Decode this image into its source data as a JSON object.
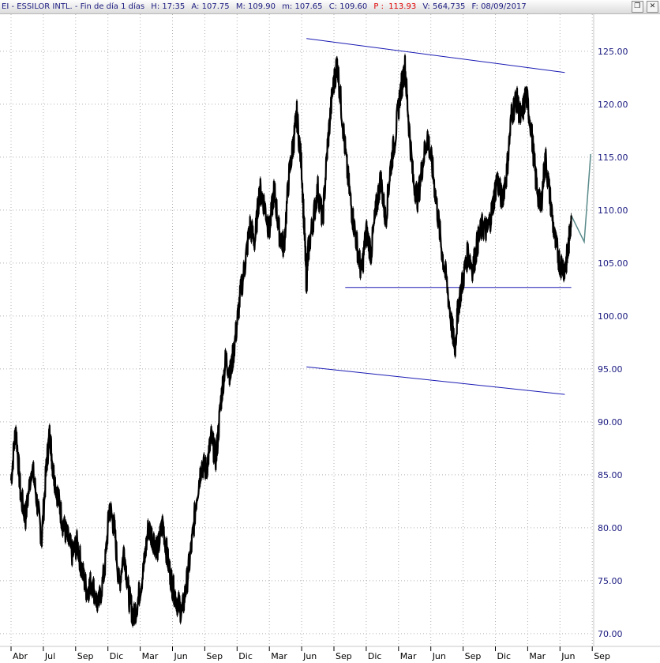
{
  "header": {
    "symbol": "EI - ESSILOR INTL. - Fin de día 1 días",
    "high_label": "H:",
    "high": "17:35",
    "open_label": "A:",
    "open": "107.75",
    "max_label": "M:",
    "max": "109.90",
    "min_label": "m:",
    "min": "107.65",
    "close_label": "C:",
    "close": "109.60",
    "p_label": "P :",
    "p": "113.93",
    "vol_label": "V:",
    "vol": "564,735",
    "date_label": "F:",
    "date": "08/09/2017"
  },
  "window_buttons": {
    "restore_icon": "restore-icon",
    "close_icon": "close-icon"
  },
  "chart_data": {
    "type": "line",
    "title": "EI - ESSILOR INTL.",
    "xlabel": "",
    "ylabel": "",
    "ylim": [
      68.8,
      128.5
    ],
    "y_ticks": [
      70,
      75,
      80,
      85,
      90,
      95,
      100,
      105,
      110,
      115,
      120,
      125
    ],
    "y_tick_labels": [
      "70.00",
      "75.00",
      "80.00",
      "85.00",
      "90.00",
      "95.00",
      "100.00",
      "105.00",
      "110.00",
      "115.00",
      "120.00",
      "125.00"
    ],
    "x_tick_labels": [
      "Abr",
      "Jul",
      "Sep",
      "Dic",
      "Mar",
      "Jun",
      "Sep",
      "Dic",
      "Mar",
      "Jun",
      "Sep",
      "Dic",
      "Mar",
      "Jun",
      "Sep",
      "Dic",
      "Mar",
      "Jun",
      "Sep"
    ],
    "x_tick_index": [
      0,
      1,
      2,
      3,
      4,
      5,
      6,
      7,
      8,
      9,
      10,
      11,
      12,
      13,
      14,
      15,
      16,
      17,
      18
    ],
    "grid": true,
    "series": [
      {
        "values": [
          [
            0,
            84.5
          ],
          [
            0.15,
            89.5
          ],
          [
            0.3,
            83.0
          ],
          [
            0.45,
            81.0
          ],
          [
            0.65,
            86.0
          ],
          [
            0.8,
            82.5
          ],
          [
            0.95,
            79.0
          ],
          [
            1.1,
            86.0
          ],
          [
            1.2,
            89.0
          ],
          [
            1.3,
            85.5
          ],
          [
            1.45,
            83.0
          ],
          [
            1.6,
            80.5
          ],
          [
            1.75,
            79.0
          ],
          [
            1.9,
            77.5
          ],
          [
            2.05,
            78.5
          ],
          [
            2.2,
            76.0
          ],
          [
            2.35,
            74.0
          ],
          [
            2.5,
            75.0
          ],
          [
            2.7,
            72.5
          ],
          [
            2.9,
            76.0
          ],
          [
            3.05,
            82.0
          ],
          [
            3.2,
            80.0
          ],
          [
            3.35,
            74.5
          ],
          [
            3.5,
            78.0
          ],
          [
            3.65,
            73.5
          ],
          [
            3.8,
            71.5
          ],
          [
            3.95,
            73.5
          ],
          [
            4.1,
            76.0
          ],
          [
            4.25,
            80.0
          ],
          [
            4.4,
            79.0
          ],
          [
            4.55,
            78.0
          ],
          [
            4.7,
            80.5
          ],
          [
            4.85,
            77.0
          ],
          [
            5.0,
            74.5
          ],
          [
            5.15,
            73.0
          ],
          [
            5.3,
            72.0
          ],
          [
            5.45,
            75.0
          ],
          [
            5.6,
            78.5
          ],
          [
            5.75,
            83.0
          ],
          [
            5.9,
            86.0
          ],
          [
            6.05,
            85.5
          ],
          [
            6.2,
            88.5
          ],
          [
            6.35,
            86.5
          ],
          [
            6.5,
            92.0
          ],
          [
            6.65,
            96.0
          ],
          [
            6.8,
            94.5
          ],
          [
            6.95,
            98.0
          ],
          [
            7.1,
            102.0
          ],
          [
            7.25,
            105.0
          ],
          [
            7.4,
            108.5
          ],
          [
            7.55,
            107.0
          ],
          [
            7.7,
            112.0
          ],
          [
            7.85,
            110.5
          ],
          [
            8.0,
            108.0
          ],
          [
            8.15,
            112.0
          ],
          [
            8.3,
            108.0
          ],
          [
            8.45,
            106.5
          ],
          [
            8.6,
            113.0
          ],
          [
            8.75,
            116.5
          ],
          [
            8.85,
            119.0
          ],
          [
            9.0,
            114.0
          ],
          [
            9.1,
            107.0
          ],
          [
            9.15,
            103.0
          ],
          [
            9.2,
            106.0
          ],
          [
            9.35,
            109.0
          ],
          [
            9.5,
            112.0
          ],
          [
            9.65,
            109.0
          ],
          [
            9.8,
            116.0
          ],
          [
            9.95,
            121.0
          ],
          [
            10.1,
            124.0
          ],
          [
            10.25,
            119.0
          ],
          [
            10.4,
            114.0
          ],
          [
            10.55,
            110.0
          ],
          [
            10.7,
            107.0
          ],
          [
            10.85,
            104.0
          ],
          [
            11.0,
            108.0
          ],
          [
            11.15,
            106.0
          ],
          [
            11.3,
            110.0
          ],
          [
            11.45,
            113.0
          ],
          [
            11.6,
            109.0
          ],
          [
            11.75,
            114.0
          ],
          [
            11.9,
            117.0
          ],
          [
            12.05,
            121.0
          ],
          [
            12.2,
            123.5
          ],
          [
            12.3,
            119.0
          ],
          [
            12.45,
            113.0
          ],
          [
            12.6,
            111.0
          ],
          [
            12.75,
            114.5
          ],
          [
            12.9,
            117.0
          ],
          [
            13.05,
            114.0
          ],
          [
            13.2,
            110.0
          ],
          [
            13.35,
            106.0
          ],
          [
            13.5,
            103.0
          ],
          [
            13.65,
            99.0
          ],
          [
            13.75,
            97.0
          ],
          [
            13.85,
            101.0
          ],
          [
            14.0,
            103.5
          ],
          [
            14.15,
            106.0
          ],
          [
            14.3,
            104.5
          ],
          [
            14.45,
            107.0
          ],
          [
            14.6,
            108.5
          ],
          [
            14.75,
            108.0
          ],
          [
            14.9,
            110.0
          ],
          [
            15.05,
            113.0
          ],
          [
            15.2,
            111.0
          ],
          [
            15.35,
            113.5
          ],
          [
            15.5,
            119.0
          ],
          [
            15.65,
            120.5
          ],
          [
            15.8,
            118.5
          ],
          [
            15.95,
            121.0
          ],
          [
            16.1,
            118.0
          ],
          [
            16.25,
            113.0
          ],
          [
            16.4,
            110.0
          ],
          [
            16.55,
            115.0
          ],
          [
            16.7,
            111.0
          ],
          [
            16.85,
            107.0
          ],
          [
            17.0,
            105.0
          ],
          [
            17.15,
            104.5
          ],
          [
            17.25,
            106.0
          ],
          [
            17.35,
            109.5
          ]
        ]
      }
    ],
    "annotations": {
      "channel_upper": [
        [
          9.15,
          126.2
        ],
        [
          17.15,
          123.0
        ]
      ],
      "channel_lower": [
        [
          9.15,
          95.2
        ],
        [
          17.15,
          92.6
        ]
      ],
      "support_line": [
        [
          10.35,
          102.7
        ],
        [
          17.35,
          102.7
        ]
      ],
      "projection": [
        [
          17.35,
          109.5
        ],
        [
          17.75,
          107.0
        ],
        [
          17.95,
          115.3
        ]
      ]
    },
    "colors": {
      "price": "#000000",
      "channel": "#1a1ab4",
      "projection": "#5a8a8a",
      "grid": "#b0b0b0"
    }
  }
}
